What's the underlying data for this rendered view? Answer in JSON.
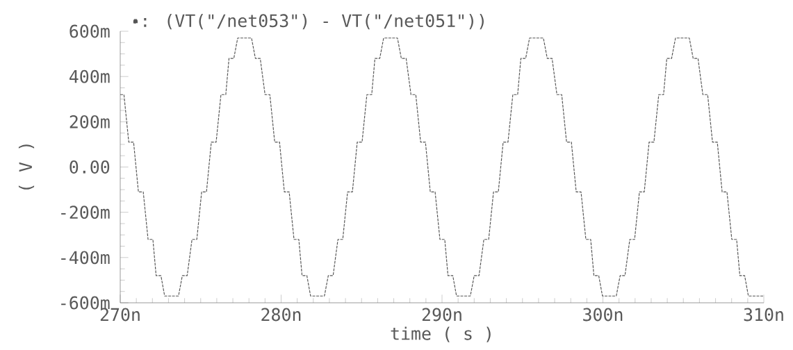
{
  "chart_data": {
    "type": "line",
    "xlabel": "time ( s )",
    "ylabel": "( V )",
    "xlim": [
      270,
      310
    ],
    "ylim": [
      -600,
      600
    ],
    "xticks": [
      {
        "value": 270,
        "label": "270n"
      },
      {
        "value": 280,
        "label": "280n"
      },
      {
        "value": 290,
        "label": "290n"
      },
      {
        "value": 300,
        "label": "300n"
      },
      {
        "value": 310,
        "label": "310n"
      }
    ],
    "yticks": [
      {
        "value": -600,
        "label": "-600m"
      },
      {
        "value": -400,
        "label": "-400m"
      },
      {
        "value": -200,
        "label": "-200m"
      },
      {
        "value": 0,
        "label": "0.00"
      },
      {
        "value": 200,
        "label": "200m"
      },
      {
        "value": 400,
        "label": "400m"
      },
      {
        "value": 600,
        "label": "600m"
      }
    ],
    "legend": "top",
    "marker": "none",
    "line_style": "dashed",
    "series": [
      {
        "name": ": (VT(\"/net053\") - VT(\"/net051\"))",
        "color": "#555555",
        "x": [
          270,
          270.23,
          270.53,
          270.83,
          271.13,
          271.43,
          271.73,
          272.03,
          272.23,
          272.53,
          272.76,
          273.62,
          273.86,
          274.16,
          274.46,
          274.76,
          275.06,
          275.36,
          275.66,
          275.96,
          276.26,
          276.56,
          276.76,
          277.06,
          277.3,
          278.16,
          278.4,
          278.7,
          279.0,
          279.3,
          279.6,
          279.9,
          280.2,
          280.5,
          280.8,
          281.1,
          281.3,
          281.6,
          281.83,
          282.69,
          282.93,
          283.23,
          283.53,
          283.83,
          284.13,
          284.43,
          284.73,
          285.03,
          285.33,
          285.63,
          285.83,
          286.13,
          286.37,
          287.23,
          287.47,
          287.77,
          288.07,
          288.37,
          288.67,
          288.97,
          289.27,
          289.57,
          289.87,
          290.17,
          290.37,
          290.67,
          290.9,
          291.76,
          292.0,
          292.3,
          292.6,
          292.9,
          293.2,
          293.5,
          293.8,
          294.1,
          294.4,
          294.7,
          294.9,
          295.2,
          295.44,
          296.3,
          296.54,
          296.84,
          297.14,
          297.44,
          297.74,
          298.04,
          298.34,
          298.64,
          298.94,
          299.24,
          299.44,
          299.74,
          299.97,
          300.83,
          301.07,
          301.37,
          301.67,
          301.97,
          302.27,
          302.57,
          302.87,
          303.17,
          303.47,
          303.77,
          303.97,
          304.27,
          304.51,
          305.37,
          305.61,
          305.91,
          306.21,
          306.51,
          306.81,
          307.11,
          307.41,
          307.71,
          308.01,
          308.31,
          308.51,
          308.81,
          309.04,
          310
        ],
        "values": [
          320,
          320,
          110,
          110,
          -110,
          -110,
          -320,
          -320,
          -480,
          -480,
          -570,
          -570,
          -480,
          -480,
          -320,
          -320,
          -110,
          -110,
          110,
          110,
          320,
          320,
          480,
          480,
          570,
          570,
          480,
          480,
          320,
          320,
          110,
          110,
          -110,
          -110,
          -320,
          -320,
          -480,
          -480,
          -570,
          -570,
          -480,
          -480,
          -320,
          -320,
          -110,
          -110,
          110,
          110,
          320,
          320,
          480,
          480,
          570,
          570,
          480,
          480,
          320,
          320,
          110,
          110,
          -110,
          -110,
          -320,
          -320,
          -480,
          -480,
          -570,
          -570,
          -480,
          -480,
          -320,
          -320,
          -110,
          -110,
          110,
          110,
          320,
          320,
          480,
          480,
          570,
          570,
          480,
          480,
          320,
          320,
          110,
          110,
          -110,
          -110,
          -320,
          -320,
          -480,
          -480,
          -570,
          -570,
          -480,
          -480,
          -320,
          -320,
          -110,
          -110,
          110,
          110,
          320,
          320,
          480,
          480,
          570,
          570,
          480,
          480,
          320,
          320,
          110,
          110,
          -110,
          -110,
          -320,
          -320,
          -480,
          -480,
          -570,
          -570
        ]
      }
    ]
  }
}
